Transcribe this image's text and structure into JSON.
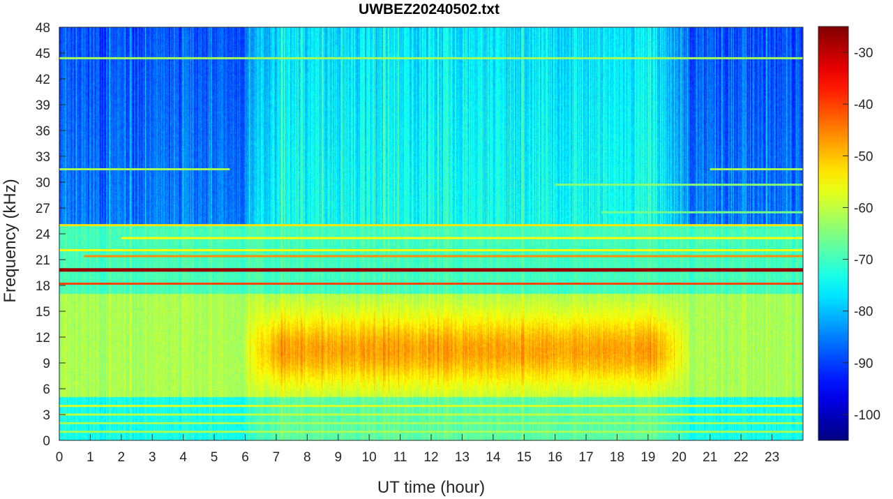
{
  "chart_data": {
    "type": "heatmap",
    "title": "UWBEZ20240502.txt",
    "xlabel": "UT time (hour)",
    "ylabel": "Frequency (kHz)",
    "xlim": [
      0,
      24
    ],
    "ylim": [
      0,
      48
    ],
    "x_ticks": [
      0,
      1,
      2,
      3,
      4,
      5,
      6,
      7,
      8,
      9,
      10,
      11,
      12,
      13,
      14,
      15,
      16,
      17,
      18,
      19,
      20,
      21,
      22,
      23
    ],
    "y_ticks": [
      0,
      3,
      6,
      9,
      12,
      15,
      18,
      21,
      24,
      27,
      30,
      33,
      36,
      39,
      42,
      45,
      48
    ],
    "colorbar": {
      "colormap": "jet",
      "range": [
        -105,
        -25
      ],
      "ticks": [
        -30,
        -40,
        -50,
        -60,
        -70,
        -80,
        -90,
        -100
      ]
    },
    "background_levels_db": {
      "below_5kHz": -74,
      "low_band_5_to_17kHz_quiet": -62,
      "low_band_5_to_17kHz_daytime_peak": -48,
      "mid_band_17_to_25kHz": -70,
      "high_band_25_to_48kHz_night": -86,
      "high_band_25_to_48kHz_day": -74
    },
    "daytime_activity_hours": [
      5.8,
      20.5
    ],
    "transmitter_lines": [
      {
        "freq_khz": 19.8,
        "level_db": -27,
        "hours": [
          0,
          24
        ]
      },
      {
        "freq_khz": 18.2,
        "level_db": -40,
        "hours": [
          0,
          24
        ]
      },
      {
        "freq_khz": 21.4,
        "level_db": -46,
        "hours": [
          0.8,
          24
        ]
      },
      {
        "freq_khz": 22.1,
        "level_db": -55,
        "hours": [
          0,
          24
        ]
      },
      {
        "freq_khz": 23.5,
        "level_db": -55,
        "hours": [
          2,
          24
        ]
      },
      {
        "freq_khz": 25.0,
        "level_db": -53,
        "hours": [
          0,
          24
        ]
      },
      {
        "freq_khz": 4.0,
        "level_db": -58,
        "hours": [
          0,
          24
        ]
      },
      {
        "freq_khz": 3.0,
        "level_db": -60,
        "hours": [
          0,
          24
        ]
      },
      {
        "freq_khz": 2.0,
        "level_db": -62,
        "hours": [
          0,
          24
        ]
      },
      {
        "freq_khz": 1.0,
        "level_db": -62,
        "hours": [
          0,
          24
        ]
      },
      {
        "freq_khz": 44.4,
        "level_db": -62,
        "hours": [
          0,
          24
        ]
      },
      {
        "freq_khz": 31.5,
        "level_db": -62,
        "hours": [
          0,
          5.5
        ]
      },
      {
        "freq_khz": 31.5,
        "level_db": -62,
        "hours": [
          21,
          24
        ]
      },
      {
        "freq_khz": 29.7,
        "level_db": -64,
        "hours": [
          16,
          24
        ]
      },
      {
        "freq_khz": 26.5,
        "level_db": -66,
        "hours": [
          17.5,
          24
        ]
      }
    ]
  }
}
